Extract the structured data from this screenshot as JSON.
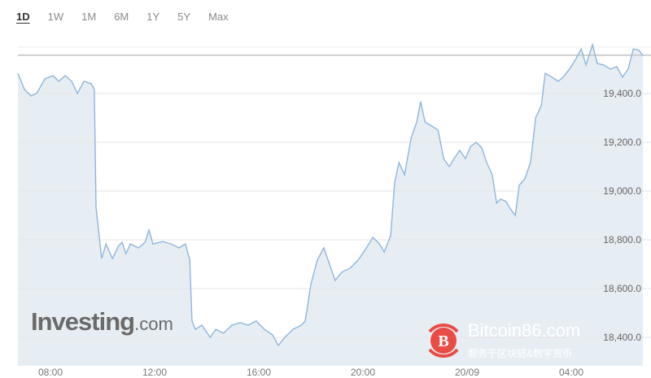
{
  "tabs": [
    {
      "label": "1D",
      "active": true
    },
    {
      "label": "1W"
    },
    {
      "label": "1M"
    },
    {
      "label": "6M"
    },
    {
      "label": "1Y"
    },
    {
      "label": "5Y"
    },
    {
      "label": "Max"
    }
  ],
  "chart_data": {
    "type": "area",
    "line_color": "#8fb6db",
    "fill_color": "#e6eef4",
    "grid": true,
    "ylim": [
      18300,
      19600
    ],
    "reference_line": 19557,
    "y_ticks": [
      {
        "value": 19400,
        "label": "19,400.0"
      },
      {
        "value": 19200,
        "label": "19,200.0"
      },
      {
        "value": 19000,
        "label": "19,000.0"
      },
      {
        "value": 18800,
        "label": "18,800.0"
      },
      {
        "value": 18600,
        "label": "18,600.0"
      },
      {
        "value": 18400,
        "label": "18,400.0"
      }
    ],
    "x_ticks": [
      {
        "time": "08:00",
        "label": "08:00"
      },
      {
        "time": "12:00",
        "label": "12:00"
      },
      {
        "time": "16:00",
        "label": "16:00"
      },
      {
        "time": "20:00",
        "label": "20:00"
      },
      {
        "time": "00:00",
        "label": "20/09"
      },
      {
        "time": "04:00",
        "label": "04:00"
      }
    ],
    "points": [
      [
        "06:45",
        19483
      ],
      [
        "07:00",
        19417
      ],
      [
        "07:15",
        19390
      ],
      [
        "07:28",
        19400
      ],
      [
        "07:47",
        19460
      ],
      [
        "08:06",
        19473
      ],
      [
        "08:19",
        19450
      ],
      [
        "08:34",
        19473
      ],
      [
        "08:49",
        19450
      ],
      [
        "09:02",
        19400
      ],
      [
        "09:17",
        19450
      ],
      [
        "09:34",
        19440
      ],
      [
        "09:41",
        19417
      ],
      [
        "09:45",
        18933
      ],
      [
        "09:58",
        18723
      ],
      [
        "10:08",
        18783
      ],
      [
        "10:23",
        18723
      ],
      [
        "10:36",
        18773
      ],
      [
        "10:45",
        18790
      ],
      [
        "10:54",
        18743
      ],
      [
        "11:04",
        18783
      ],
      [
        "11:23",
        18767
      ],
      [
        "11:38",
        18790
      ],
      [
        "11:47",
        18840
      ],
      [
        "11:56",
        18783
      ],
      [
        "12:19",
        18793
      ],
      [
        "12:38",
        18783
      ],
      [
        "12:56",
        18767
      ],
      [
        "13:11",
        18783
      ],
      [
        "13:21",
        18717
      ],
      [
        "13:26",
        18467
      ],
      [
        "13:34",
        18433
      ],
      [
        "13:49",
        18450
      ],
      [
        "14:08",
        18400
      ],
      [
        "14:21",
        18433
      ],
      [
        "14:39",
        18417
      ],
      [
        "14:58",
        18450
      ],
      [
        "15:17",
        18460
      ],
      [
        "15:36",
        18450
      ],
      [
        "15:54",
        18467
      ],
      [
        "16:13",
        18433
      ],
      [
        "16:32",
        18410
      ],
      [
        "16:45",
        18367
      ],
      [
        "17:00",
        18400
      ],
      [
        "17:19",
        18433
      ],
      [
        "17:38",
        18450
      ],
      [
        "17:47",
        18467
      ],
      [
        "18:00",
        18617
      ],
      [
        "18:15",
        18717
      ],
      [
        "18:30",
        18767
      ],
      [
        "18:43",
        18700
      ],
      [
        "18:56",
        18633
      ],
      [
        "19:11",
        18667
      ],
      [
        "19:30",
        18683
      ],
      [
        "19:49",
        18717
      ],
      [
        "20:08",
        18767
      ],
      [
        "20:23",
        18810
      ],
      [
        "20:38",
        18783
      ],
      [
        "20:49",
        18750
      ],
      [
        "21:04",
        18817
      ],
      [
        "21:13",
        19033
      ],
      [
        "21:23",
        19117
      ],
      [
        "21:36",
        19067
      ],
      [
        "21:51",
        19217
      ],
      [
        "22:04",
        19283
      ],
      [
        "22:13",
        19367
      ],
      [
        "22:23",
        19283
      ],
      [
        "22:38",
        19267
      ],
      [
        "22:53",
        19250
      ],
      [
        "23:06",
        19133
      ],
      [
        "23:19",
        19100
      ],
      [
        "23:30",
        19133
      ],
      [
        "23:43",
        19167
      ],
      [
        "23:56",
        19133
      ],
      [
        "00:08",
        19183
      ],
      [
        "00:21",
        19200
      ],
      [
        "00:34",
        19177
      ],
      [
        "00:45",
        19117
      ],
      [
        "00:58",
        19067
      ],
      [
        "01:08",
        18950
      ],
      [
        "01:17",
        18967
      ],
      [
        "01:30",
        18957
      ],
      [
        "01:41",
        18923
      ],
      [
        "01:51",
        18900
      ],
      [
        "02:00",
        19023
      ],
      [
        "02:13",
        19050
      ],
      [
        "02:26",
        19117
      ],
      [
        "02:38",
        19300
      ],
      [
        "02:51",
        19350
      ],
      [
        "03:00",
        19483
      ],
      [
        "03:15",
        19467
      ],
      [
        "03:30",
        19450
      ],
      [
        "03:41",
        19467
      ],
      [
        "03:56",
        19500
      ],
      [
        "04:11",
        19543
      ],
      [
        "04:23",
        19583
      ],
      [
        "04:34",
        19517
      ],
      [
        "04:49",
        19600
      ],
      [
        "05:00",
        19523
      ],
      [
        "05:15",
        19517
      ],
      [
        "05:30",
        19500
      ],
      [
        "05:45",
        19510
      ],
      [
        "05:58",
        19467
      ],
      [
        "06:11",
        19500
      ],
      [
        "06:23",
        19583
      ],
      [
        "06:36",
        19577
      ],
      [
        "06:45",
        19557
      ]
    ]
  },
  "logo": {
    "brand": "Investing",
    "suffix": ".com"
  },
  "watermark": {
    "title": "Bitcoin86.com",
    "subtitle": "服务于区块链&数字货币"
  }
}
